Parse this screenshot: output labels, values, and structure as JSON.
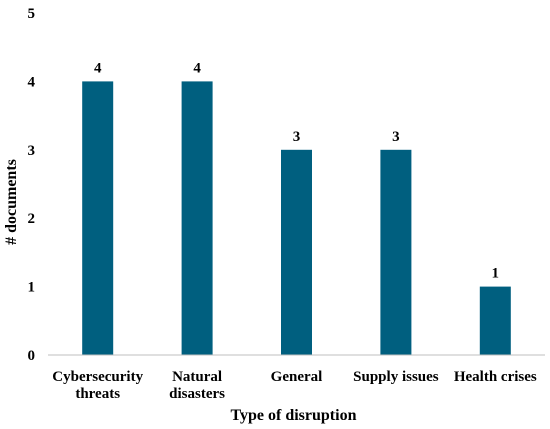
{
  "chart_data": {
    "type": "bar",
    "title": "",
    "xlabel": "Type of disruption",
    "ylabel": "# documents",
    "categories": [
      [
        "Cybersecurity",
        "threats"
      ],
      [
        "Natural",
        "disasters"
      ],
      [
        "General"
      ],
      [
        "Supply issues"
      ],
      [
        "Health crises"
      ]
    ],
    "values": [
      4,
      4,
      3,
      3,
      1
    ],
    "ylim": [
      0,
      5
    ],
    "yticks": [
      0,
      1,
      2,
      3,
      4,
      5
    ],
    "data_labels": true,
    "grid": false,
    "legend": "none",
    "bar_color": "#005F7F"
  }
}
